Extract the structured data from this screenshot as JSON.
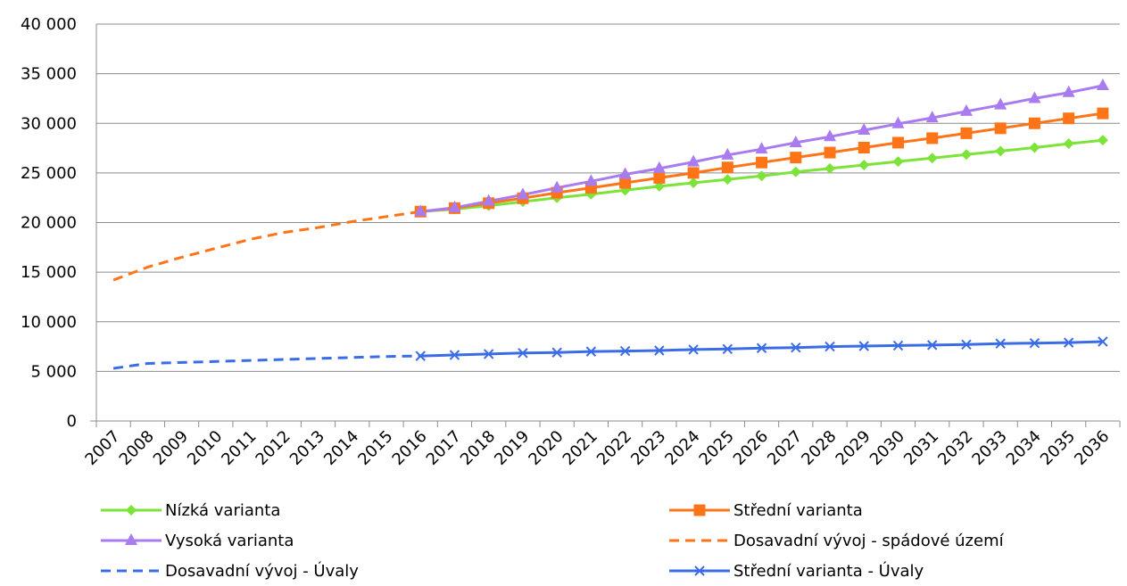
{
  "chart_data": {
    "type": "line",
    "title": "",
    "xlabel": "",
    "ylabel": "",
    "categories": [
      "2007",
      "2008",
      "2009",
      "2010",
      "2011",
      "2012",
      "2013",
      "2014",
      "2015",
      "2016",
      "2017",
      "2018",
      "2019",
      "2020",
      "2021",
      "2022",
      "2023",
      "2024",
      "2025",
      "2026",
      "2027",
      "2028",
      "2029",
      "2030",
      "2031",
      "2032",
      "2033",
      "2034",
      "2035",
      "2036"
    ],
    "ylim": [
      0,
      40000
    ],
    "yticks": [
      0,
      5000,
      10000,
      15000,
      20000,
      25000,
      30000,
      35000,
      40000
    ],
    "ytick_labels": [
      "0",
      "5 000",
      "10 000",
      "15 000",
      "20 000",
      "25 000",
      "30 000",
      "35 000",
      "40 000"
    ],
    "grid": true,
    "legend_position": "bottom",
    "series": [
      {
        "name": "Nízká varianta",
        "color": "#7be33a",
        "dash": "solid",
        "marker": "diamond",
        "values": [
          null,
          null,
          null,
          null,
          null,
          null,
          null,
          null,
          null,
          21100,
          21350,
          21700,
          22100,
          22500,
          22850,
          23250,
          23650,
          24000,
          24350,
          24700,
          25100,
          25450,
          25800,
          26150,
          26500,
          26850,
          27200,
          27550,
          27950,
          28300
        ]
      },
      {
        "name": "Střední varianta",
        "color": "#ff7417",
        "dash": "solid",
        "marker": "square",
        "values": [
          null,
          null,
          null,
          null,
          null,
          null,
          null,
          null,
          null,
          21100,
          21450,
          21950,
          22450,
          23000,
          23500,
          24000,
          24500,
          25000,
          25550,
          26050,
          26550,
          27050,
          27550,
          28050,
          28500,
          29000,
          29500,
          30000,
          30500,
          31000
        ]
      },
      {
        "name": "Vysoká varianta",
        "color": "#a97bf0",
        "dash": "solid",
        "marker": "triangle",
        "values": [
          null,
          null,
          null,
          null,
          null,
          null,
          null,
          null,
          null,
          21100,
          21500,
          22150,
          22800,
          23500,
          24150,
          24850,
          25450,
          26100,
          26800,
          27400,
          28050,
          28650,
          29300,
          29950,
          30550,
          31200,
          31850,
          32500,
          33100,
          33800
        ]
      },
      {
        "name": "Dosavadní vývoj - spádové území",
        "color": "#ff7417",
        "dash": "dashed",
        "marker": "none",
        "values": [
          14200,
          15500,
          16500,
          17400,
          18300,
          19000,
          19500,
          20100,
          20600,
          21100,
          null,
          null,
          null,
          null,
          null,
          null,
          null,
          null,
          null,
          null,
          null,
          null,
          null,
          null,
          null,
          null,
          null,
          null,
          null,
          null
        ]
      },
      {
        "name": "Dosavadní vývoj - Úvaly",
        "color": "#3b6ce8",
        "dash": "dashed",
        "marker": "none",
        "values": [
          5300,
          5800,
          5900,
          6000,
          6100,
          6200,
          6300,
          6400,
          6500,
          6550,
          null,
          null,
          null,
          null,
          null,
          null,
          null,
          null,
          null,
          null,
          null,
          null,
          null,
          null,
          null,
          null,
          null,
          null,
          null,
          null
        ]
      },
      {
        "name": "Střední varianta - Úvaly",
        "color": "#3b6ce8",
        "dash": "solid",
        "marker": "x",
        "values": [
          null,
          null,
          null,
          null,
          null,
          null,
          null,
          null,
          null,
          6550,
          6650,
          6750,
          6850,
          6900,
          7000,
          7050,
          7100,
          7200,
          7250,
          7350,
          7400,
          7500,
          7550,
          7600,
          7650,
          7700,
          7800,
          7850,
          7900,
          8000
        ]
      }
    ]
  }
}
